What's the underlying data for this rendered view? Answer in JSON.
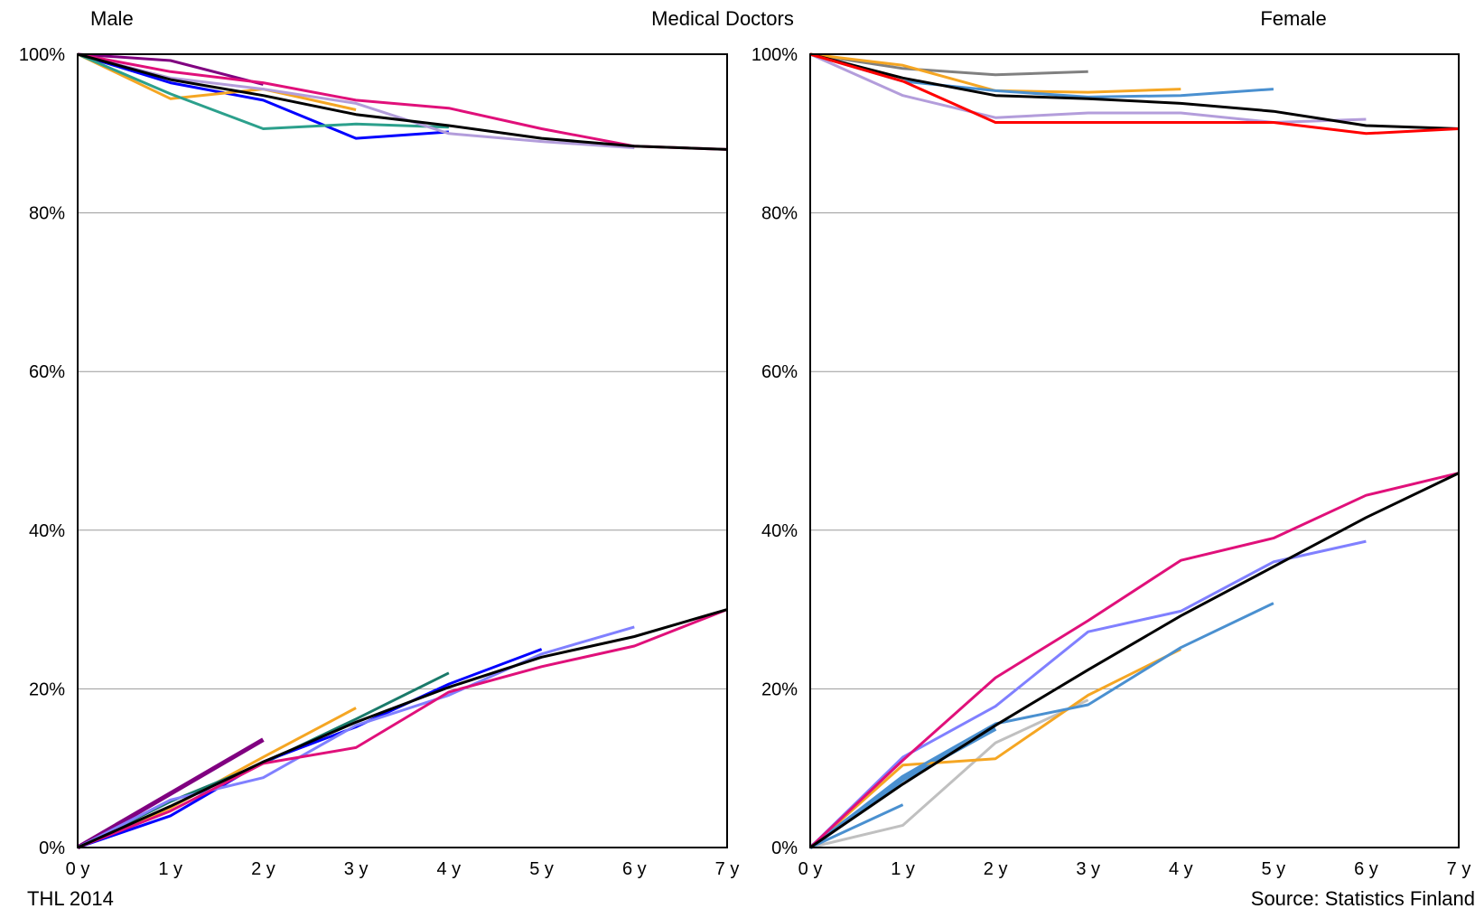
{
  "header": {
    "left": "Male",
    "center": "Medical Doctors",
    "right": "Female"
  },
  "footer": {
    "left": "THL 2014",
    "right": "Source: Statistics Finland"
  },
  "chart_data": [
    {
      "type": "line",
      "panel": "Male",
      "x_categories": [
        "0 y",
        "1 y",
        "2 y",
        "3 y",
        "4 y",
        "5 y",
        "6 y",
        "7 y"
      ],
      "y_ticks": [
        "0%",
        "20%",
        "40%",
        "60%",
        "80%",
        "100%"
      ],
      "ylim": [
        0,
        100
      ],
      "grid": "horizontal",
      "series": [
        {
          "color": "#800080",
          "width": 3,
          "x": [
            0,
            1,
            2
          ],
          "y": [
            100,
            99.2,
            96.2
          ]
        },
        {
          "color": "#0000ff",
          "width": 3,
          "x": [
            0,
            1,
            2,
            3,
            4
          ],
          "y": [
            100,
            96.4,
            94.2,
            89.4,
            90.2
          ]
        },
        {
          "color": "#f5a623",
          "width": 3,
          "x": [
            0,
            1,
            2,
            3
          ],
          "y": [
            100,
            94.4,
            95.6,
            93.0
          ]
        },
        {
          "color": "#2ca08c",
          "width": 3,
          "x": [
            0,
            1,
            2,
            3,
            4
          ],
          "y": [
            100,
            95.0,
            90.6,
            91.2,
            90.8
          ]
        },
        {
          "color": "#b39ddb",
          "width": 3,
          "x": [
            0,
            1,
            2,
            3,
            4,
            5,
            6
          ],
          "y": [
            100,
            97.0,
            95.6,
            93.8,
            90.0,
            89.0,
            88.2
          ]
        },
        {
          "color": "#e0107a",
          "width": 3,
          "x": [
            0,
            1,
            2,
            3,
            4,
            5,
            6,
            7
          ],
          "y": [
            100,
            97.8,
            96.4,
            94.2,
            93.2,
            90.6,
            88.4,
            88.0
          ]
        },
        {
          "color": "#000000",
          "width": 3,
          "x": [
            0,
            1,
            2,
            3,
            4,
            5,
            6,
            7
          ],
          "y": [
            100,
            96.8,
            94.8,
            92.4,
            91.0,
            89.4,
            88.4,
            88.0
          ]
        },
        {
          "color": "#800080",
          "width": 5,
          "x": [
            0,
            2
          ],
          "y": [
            0,
            13.6
          ]
        },
        {
          "color": "#f5a623",
          "width": 3,
          "x": [
            0,
            1,
            2,
            3
          ],
          "y": [
            0,
            5.0,
            11.4,
            17.6
          ]
        },
        {
          "color": "#1a7a6a",
          "width": 3,
          "x": [
            0,
            1,
            2,
            3,
            4
          ],
          "y": [
            0,
            5.8,
            10.6,
            16.2,
            22.0
          ]
        },
        {
          "color": "#0000ff",
          "width": 3,
          "x": [
            0,
            1,
            2,
            3,
            4,
            5
          ],
          "y": [
            0,
            4.0,
            10.8,
            15.2,
            20.6,
            25.0
          ]
        },
        {
          "color": "#8080ff",
          "width": 3,
          "x": [
            0,
            1,
            2,
            3,
            4,
            5,
            6
          ],
          "y": [
            0,
            6.0,
            8.8,
            15.4,
            19.2,
            24.4,
            27.8
          ]
        },
        {
          "color": "#e0107a",
          "width": 3,
          "x": [
            0,
            1,
            2,
            3,
            4,
            5,
            6,
            7
          ],
          "y": [
            0,
            4.6,
            10.6,
            12.6,
            19.6,
            22.8,
            25.4,
            30.0
          ]
        },
        {
          "color": "#000000",
          "width": 3,
          "x": [
            0,
            1,
            2,
            3,
            4,
            5,
            6,
            7
          ],
          "y": [
            0,
            5.2,
            10.8,
            15.8,
            20.2,
            24.0,
            26.6,
            30.0
          ]
        }
      ]
    },
    {
      "type": "line",
      "panel": "Female",
      "x_categories": [
        "0 y",
        "1 y",
        "2 y",
        "3 y",
        "4 y",
        "5 y",
        "6 y",
        "7 y"
      ],
      "y_ticks": [
        "0%",
        "20%",
        "40%",
        "60%",
        "80%",
        "100%"
      ],
      "ylim": [
        0,
        100
      ],
      "grid": "horizontal",
      "series": [
        {
          "color": "#808080",
          "width": 3,
          "x": [
            0,
            1,
            2,
            3
          ],
          "y": [
            100,
            98.2,
            97.4,
            97.8
          ]
        },
        {
          "color": "#f5a623",
          "width": 3,
          "x": [
            0,
            1,
            2,
            3,
            4
          ],
          "y": [
            100,
            98.6,
            95.4,
            95.2,
            95.6
          ]
        },
        {
          "color": "#4a90d0",
          "width": 3,
          "x": [
            0,
            1,
            2,
            3,
            4,
            5
          ],
          "y": [
            100,
            96.6,
            95.4,
            94.6,
            94.8,
            95.6
          ]
        },
        {
          "color": "#b39ddb",
          "width": 3,
          "x": [
            0,
            1,
            2,
            3,
            4,
            5,
            6
          ],
          "y": [
            100,
            94.8,
            92.0,
            92.6,
            92.6,
            91.4,
            91.8
          ]
        },
        {
          "color": "#000000",
          "width": 3,
          "x": [
            0,
            1,
            2,
            3,
            4,
            5,
            6,
            7
          ],
          "y": [
            100,
            97.0,
            94.8,
            94.4,
            93.8,
            92.8,
            91.0,
            90.6
          ]
        },
        {
          "color": "#ff0000",
          "width": 3,
          "x": [
            0,
            1,
            2,
            3,
            4,
            5,
            6,
            7
          ],
          "y": [
            100,
            96.6,
            91.4,
            91.4,
            91.4,
            91.4,
            90.0,
            90.6
          ]
        },
        {
          "color": "#c0c0c0",
          "width": 3,
          "x": [
            0,
            1,
            2,
            3
          ],
          "y": [
            0,
            2.8,
            13.2,
            18.6
          ]
        },
        {
          "color": "#4a90d0",
          "width": 5,
          "x": [
            0,
            1,
            2
          ],
          "y": [
            0,
            8.6,
            15.0
          ]
        },
        {
          "color": "#4a90d0",
          "width": 3,
          "x": [
            0,
            1
          ],
          "y": [
            0,
            5.4
          ]
        },
        {
          "color": "#f5a623",
          "width": 3,
          "x": [
            0,
            1,
            2,
            3,
            4
          ],
          "y": [
            0,
            10.4,
            11.2,
            19.2,
            25.0
          ]
        },
        {
          "color": "#4a90d0",
          "width": 3,
          "x": [
            0,
            1,
            2,
            3,
            4,
            5
          ],
          "y": [
            0,
            9.0,
            15.6,
            18.0,
            25.2,
            30.8
          ]
        },
        {
          "color": "#8080ff",
          "width": 3,
          "x": [
            0,
            1,
            2,
            3,
            4,
            5,
            6
          ],
          "y": [
            0,
            11.4,
            17.8,
            27.2,
            29.8,
            36.0,
            38.6
          ]
        },
        {
          "color": "#e0107a",
          "width": 3,
          "x": [
            0,
            1,
            2,
            3,
            4,
            5,
            6,
            7
          ],
          "y": [
            0,
            11.0,
            21.4,
            28.6,
            36.2,
            39.0,
            44.4,
            47.2
          ]
        },
        {
          "color": "#000000",
          "width": 3,
          "x": [
            0,
            1,
            2,
            3,
            4,
            5,
            6,
            7
          ],
          "y": [
            0,
            8.0,
            15.4,
            22.4,
            29.2,
            35.4,
            41.6,
            47.2
          ]
        }
      ]
    }
  ]
}
